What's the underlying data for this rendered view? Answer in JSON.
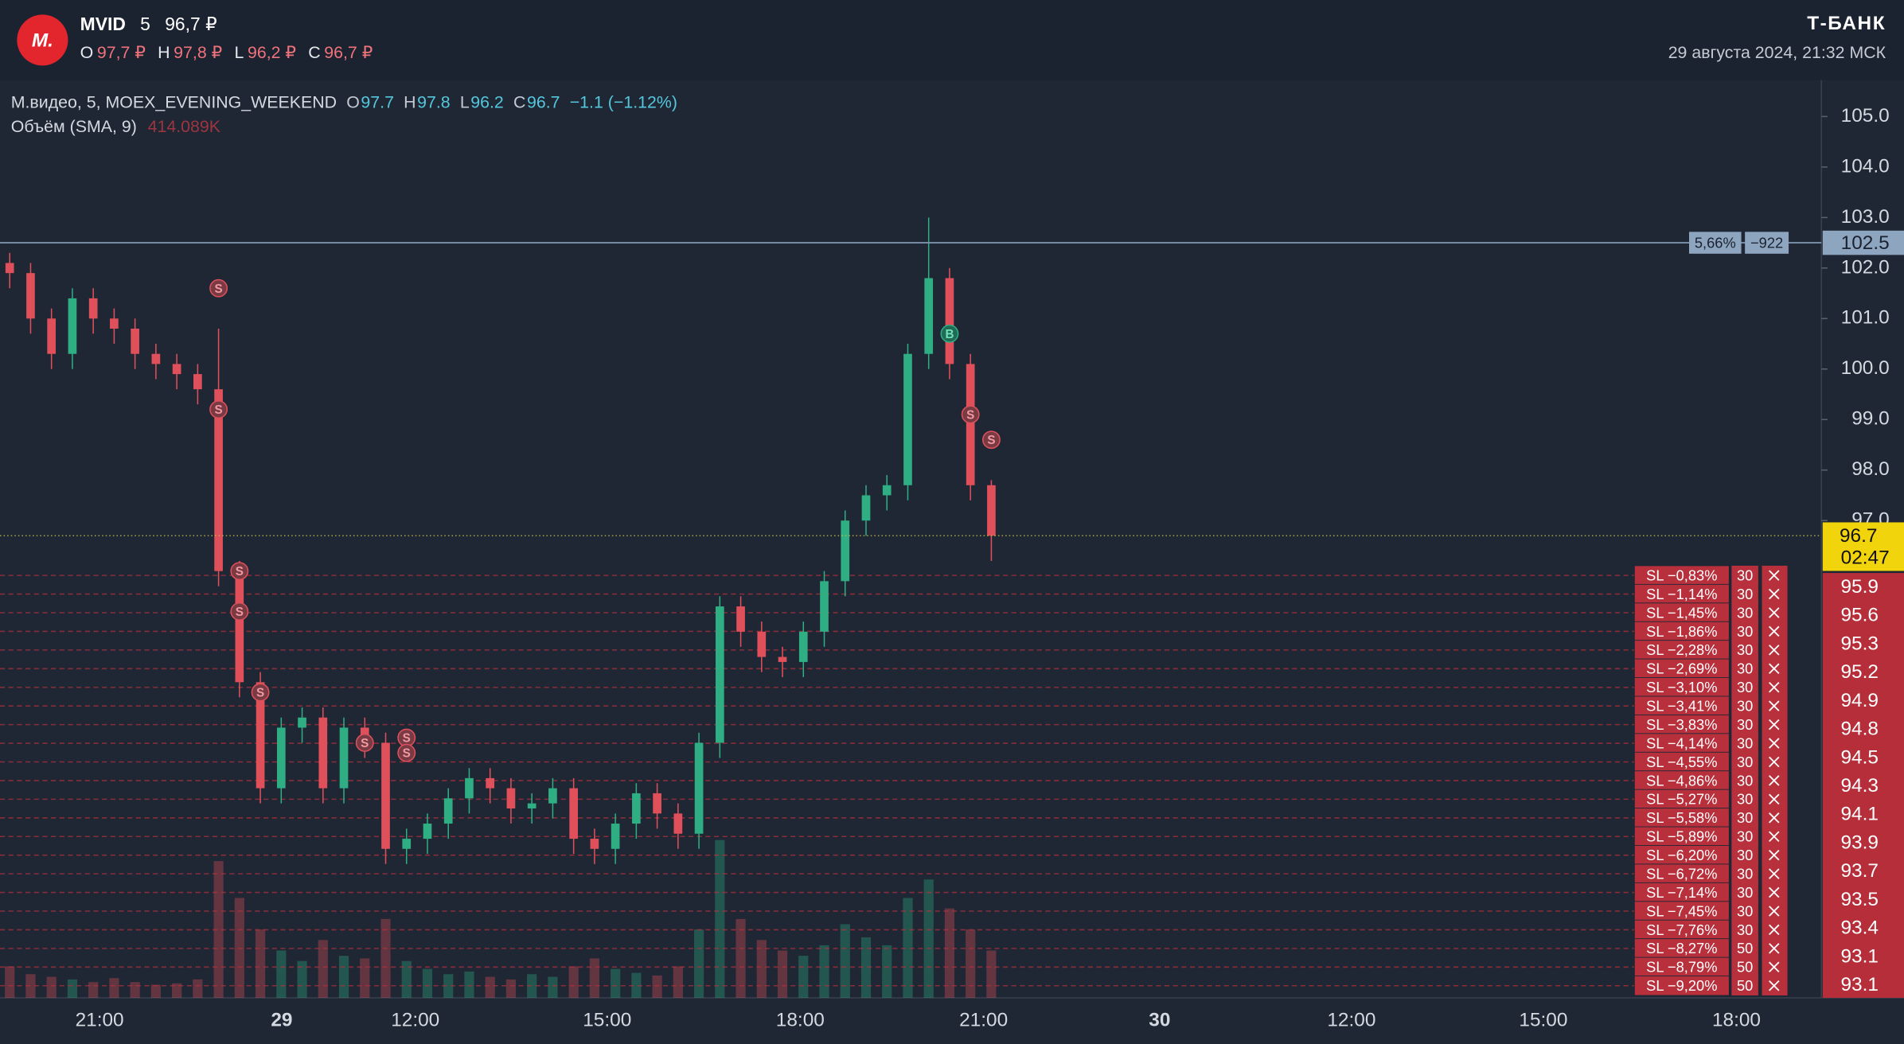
{
  "header": {
    "logo": "М.",
    "ticker": "MVID",
    "interval": "5",
    "price": "96,7 ₽",
    "ohlc": [
      {
        "key": "O",
        "value": "97,7 ₽"
      },
      {
        "key": "H",
        "value": "97,8 ₽"
      },
      {
        "key": "L",
        "value": "96,2 ₽"
      },
      {
        "key": "C",
        "value": "96,7 ₽"
      }
    ],
    "brand": "Т‑БАНК",
    "datetime": "29 августа 2024, 21:32 МСК"
  },
  "chart_data": {
    "type": "candlestick",
    "legend": {
      "symbol": "М.видео, 5, MOEX_EVENING_WEEKEND",
      "ohlc": [
        {
          "key": "O",
          "value": 97.7
        },
        {
          "key": "H",
          "value": 97.8
        },
        {
          "key": "L",
          "value": 96.2
        },
        {
          "key": "C",
          "value": 96.7
        }
      ],
      "change": "−1.1 (−1.12%)",
      "volume_title": "Объём (SMA, 9)",
      "volume_value": "414.089K"
    },
    "up_color": "#2fae84",
    "down_color": "#e0505a",
    "open": [
      102.1,
      101.9,
      101.0,
      100.3,
      101.4,
      101.0,
      100.8,
      100.3,
      100.1,
      99.9,
      99.6,
      96.0,
      93.8,
      91.7,
      92.9,
      93.1,
      91.7,
      92.9,
      92.6,
      90.5,
      90.7,
      91.0,
      91.5,
      91.9,
      91.7,
      91.3,
      91.4,
      91.7,
      90.7,
      90.5,
      91.0,
      91.6,
      91.2,
      90.8,
      92.6,
      95.3,
      94.8,
      94.3,
      94.2,
      94.8,
      95.8,
      97.0,
      97.5,
      97.7,
      100.3,
      101.8,
      100.1,
      97.7
    ],
    "high": [
      102.3,
      102.1,
      101.2,
      101.6,
      101.6,
      101.2,
      101.0,
      100.5,
      100.3,
      100.1,
      100.8,
      96.2,
      94.0,
      93.1,
      93.3,
      93.3,
      93.1,
      93.1,
      92.8,
      90.9,
      91.2,
      91.7,
      92.1,
      92.1,
      91.9,
      91.6,
      91.9,
      91.9,
      90.9,
      91.2,
      91.8,
      91.8,
      91.4,
      92.8,
      95.5,
      95.5,
      95.0,
      94.5,
      95.0,
      96.0,
      97.2,
      97.7,
      97.9,
      100.5,
      103.0,
      102.0,
      100.3,
      97.8
    ],
    "low": [
      101.6,
      100.7,
      100.0,
      100.0,
      100.7,
      100.5,
      100.0,
      99.8,
      99.6,
      99.3,
      95.7,
      93.5,
      91.4,
      91.4,
      92.6,
      91.4,
      91.4,
      92.3,
      90.2,
      90.2,
      90.4,
      90.7,
      91.2,
      91.4,
      91.0,
      91.0,
      91.1,
      90.4,
      90.2,
      90.2,
      90.7,
      90.9,
      90.5,
      90.5,
      92.3,
      94.5,
      94.0,
      93.9,
      93.9,
      94.5,
      95.5,
      96.7,
      97.2,
      97.4,
      100.0,
      99.8,
      97.4,
      96.2
    ],
    "close": [
      101.9,
      101.0,
      100.3,
      101.4,
      101.0,
      100.8,
      100.3,
      100.1,
      99.9,
      99.6,
      96.0,
      93.8,
      91.7,
      92.9,
      93.1,
      91.7,
      92.9,
      92.6,
      90.5,
      90.7,
      91.0,
      91.5,
      91.9,
      91.7,
      91.3,
      91.4,
      91.7,
      90.7,
      90.5,
      91.0,
      91.6,
      91.2,
      90.8,
      92.6,
      95.3,
      94.8,
      94.3,
      94.2,
      94.8,
      95.8,
      97.0,
      97.5,
      97.7,
      100.3,
      101.8,
      100.1,
      97.7,
      96.7
    ],
    "volume": [
      120,
      90,
      80,
      70,
      60,
      75,
      60,
      50,
      55,
      70,
      520,
      380,
      260,
      180,
      140,
      220,
      160,
      150,
      300,
      140,
      110,
      90,
      100,
      80,
      70,
      90,
      80,
      120,
      150,
      110,
      95,
      85,
      120,
      260,
      600,
      300,
      220,
      180,
      160,
      200,
      280,
      230,
      200,
      380,
      450,
      340,
      260,
      180
    ],
    "ylim": [
      87.55,
      105.72
    ],
    "yticks": [
      {
        "value": 97,
        "label": "97.0"
      },
      {
        "value": 98,
        "label": "98.0"
      },
      {
        "value": 99,
        "label": "99.0"
      },
      {
        "value": 100,
        "label": "100.0"
      },
      {
        "value": 101,
        "label": "101.0"
      },
      {
        "value": 102,
        "label": "102.0"
      },
      {
        "value": 103,
        "label": "103.0"
      },
      {
        "value": 104,
        "label": "104.0"
      },
      {
        "value": 105,
        "label": "105.0"
      }
    ],
    "time_labels": [
      {
        "label": "21:00",
        "bold": false
      },
      {
        "label": "29",
        "bold": true
      },
      {
        "label": "12:00",
        "bold": false
      },
      {
        "label": "15:00",
        "bold": false
      },
      {
        "label": "18:00",
        "bold": false
      },
      {
        "label": "21:00",
        "bold": false
      },
      {
        "label": "30",
        "bold": true
      },
      {
        "label": "12:00",
        "bold": false
      },
      {
        "label": "15:00",
        "bold": false
      },
      {
        "label": "18:00",
        "bold": false
      }
    ],
    "price_line": {
      "value": 102.5,
      "label": "102.5",
      "pct": "5,66%",
      "pnl": "−922"
    },
    "last_price": {
      "value": 96.7,
      "label": "96.7",
      "countdown": "02:47"
    },
    "markers": [
      {
        "label": "S",
        "candle": 10,
        "price": 101.6
      },
      {
        "label": "S",
        "candle": 10,
        "price": 99.2
      },
      {
        "label": "S",
        "candle": 11,
        "price": 96.0
      },
      {
        "label": "S",
        "candle": 11,
        "price": 95.2
      },
      {
        "label": "S",
        "candle": 12,
        "price": 93.6
      },
      {
        "label": "S",
        "candle": 17,
        "price": 92.6
      },
      {
        "label": "S",
        "candle": 19,
        "price": 92.7
      },
      {
        "label": "S",
        "candle": 19,
        "price": 92.4
      },
      {
        "label": "B",
        "candle": 45,
        "price": 100.7
      },
      {
        "label": "S",
        "candle": 46,
        "price": 99.1
      },
      {
        "label": "S",
        "candle": 47,
        "price": 98.6
      }
    ],
    "stop_orders": [
      {
        "label": "SL −0,83%",
        "qty": 30
      },
      {
        "label": "SL −1,14%",
        "qty": 30
      },
      {
        "label": "SL −1,45%",
        "qty": 30
      },
      {
        "label": "SL −1,86%",
        "qty": 30
      },
      {
        "label": "SL −2,28%",
        "qty": 30
      },
      {
        "label": "SL −2,69%",
        "qty": 30
      },
      {
        "label": "SL −3,10%",
        "qty": 30
      },
      {
        "label": "SL −3,41%",
        "qty": 30
      },
      {
        "label": "SL −3,83%",
        "qty": 30
      },
      {
        "label": "SL −4,14%",
        "qty": 30
      },
      {
        "label": "SL −4,55%",
        "qty": 30
      },
      {
        "label": "SL −4,86%",
        "qty": 30
      },
      {
        "label": "SL −5,27%",
        "qty": 30
      },
      {
        "label": "SL −5,58%",
        "qty": 30
      },
      {
        "label": "SL −5,89%",
        "qty": 30
      },
      {
        "label": "SL −6,20%",
        "qty": 30
      },
      {
        "label": "SL −6,72%",
        "qty": 30
      },
      {
        "label": "SL −7,14%",
        "qty": 30
      },
      {
        "label": "SL −7,45%",
        "qty": 30
      },
      {
        "label": "SL −7,76%",
        "qty": 30
      },
      {
        "label": "SL −8,27%",
        "qty": 50
      },
      {
        "label": "SL −8,79%",
        "qty": 50
      },
      {
        "label": "SL −9,20%",
        "qty": 50
      }
    ],
    "stop_axis_labels": [
      95.9,
      95.6,
      95.3,
      95.2,
      94.9,
      94.8,
      94.5,
      94.3,
      94.1,
      93.9,
      93.7,
      93.5,
      93.4,
      93.1,
      93.1
    ]
  }
}
